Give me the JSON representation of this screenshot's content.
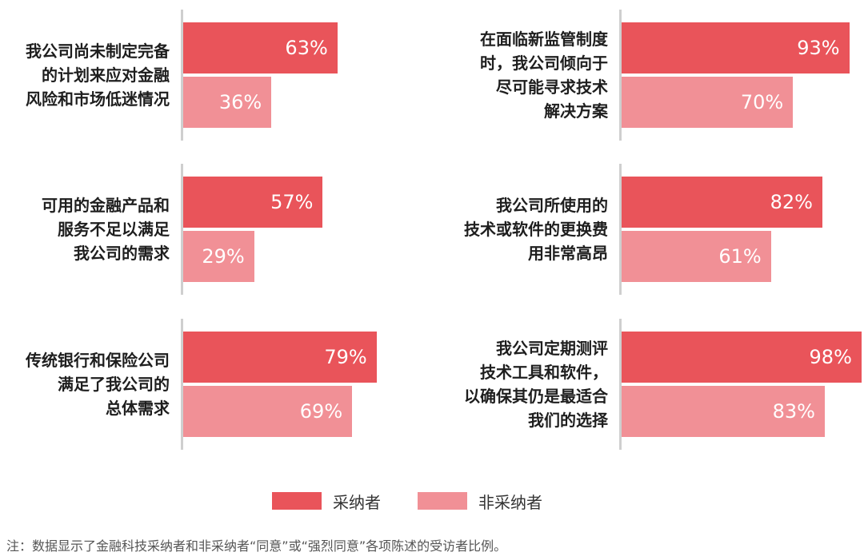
{
  "colors": {
    "adopters": "#e9545a",
    "non_adopters": "#f19096",
    "axis": "#cfcfcf"
  },
  "chart_data": {
    "type": "bar",
    "orientation": "horizontal",
    "xlim": [
      0,
      100
    ],
    "unit": "%",
    "series": [
      {
        "name": "采纳者",
        "color": "#e9545a"
      },
      {
        "name": "非采纳者",
        "color": "#f19096"
      }
    ],
    "groups": [
      {
        "label": "我公司尚未制定完备\n的计划来应对金融\n风险和市场低迷情况",
        "values": [
          63,
          36
        ]
      },
      {
        "label": "可用的金融产品和\n服务不足以满足\n我公司的需求",
        "values": [
          57,
          29
        ]
      },
      {
        "label": "传统银行和保险公司\n满足了我公司的\n总体需求",
        "values": [
          79,
          69
        ]
      },
      {
        "label": "在面临新监管制度\n时，我公司倾向于\n尽可能寻求技术\n解决方案",
        "values": [
          93,
          70
        ]
      },
      {
        "label": "我公司所使用的\n技术或软件的更换费\n用非常高昂",
        "values": [
          82,
          61
        ]
      },
      {
        "label": "我公司定期测评\n技术工具和软件，\n以确保其仍是最适合\n我们的选择",
        "values": [
          98,
          83
        ]
      }
    ],
    "legend": {
      "position": "bottom-center",
      "items": [
        "采纳者",
        "非采纳者"
      ]
    }
  },
  "note": "注：数据显示了金融科技采纳者和非采纳者“同意”或“强烈同意”各项陈述的受访者比例。"
}
